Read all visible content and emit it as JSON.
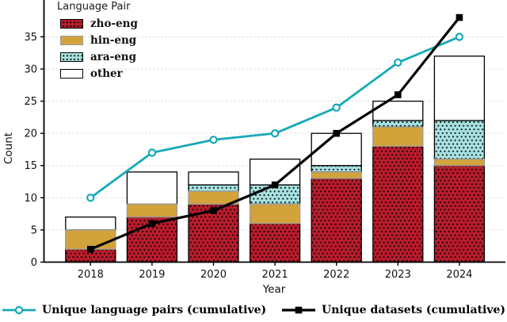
{
  "chart_data": {
    "type": "bar",
    "title": "",
    "xlabel": "Year",
    "ylabel": "Count",
    "categories": [
      "2018",
      "2019",
      "2020",
      "2021",
      "2022",
      "2023",
      "2024"
    ],
    "legend_title": "Language Pair",
    "yticks": [
      0,
      5,
      10,
      15,
      20,
      25,
      30,
      35
    ],
    "ylim": [
      0,
      40.7
    ],
    "grid": "horizontal-dashed",
    "grid_color": "#d9d9d9",
    "stack_series": [
      {
        "name": "zho-eng",
        "values": [
          2,
          7,
          9,
          6,
          13,
          18,
          15
        ],
        "color": "#b81c2c",
        "edge": "#000000",
        "hatch": "dots"
      },
      {
        "name": "hin-eng",
        "values": [
          3,
          2,
          2,
          3,
          1,
          3,
          1
        ],
        "color": "#d2a33b",
        "edge": "#9a9a9a",
        "hatch": "none"
      },
      {
        "name": "ara-eng",
        "values": [
          0,
          0,
          1,
          3,
          1,
          1,
          6
        ],
        "color": "#a6e1e0",
        "edge": "#000000",
        "hatch": "dots"
      },
      {
        "name": "other",
        "values": [
          2,
          5,
          2,
          4,
          5,
          3,
          10
        ],
        "color": "#ffffff",
        "edge": "#000000",
        "hatch": "none"
      }
    ],
    "bar_totals": [
      7,
      14,
      14,
      16,
      20,
      25,
      32
    ],
    "line_series": [
      {
        "name": "Unique language pairs (cumulative)",
        "values": [
          10,
          17,
          19,
          20,
          24,
          31,
          35
        ],
        "color": "#17a9b8",
        "marker": "circle-open"
      },
      {
        "name": "Unique datasets (cumulative)",
        "values": [
          2,
          6,
          8,
          12,
          20,
          26,
          38
        ],
        "color": "#000000",
        "marker": "square-filled"
      }
    ],
    "legend_position": "upper-left",
    "line_legend_position": "below-axis"
  }
}
